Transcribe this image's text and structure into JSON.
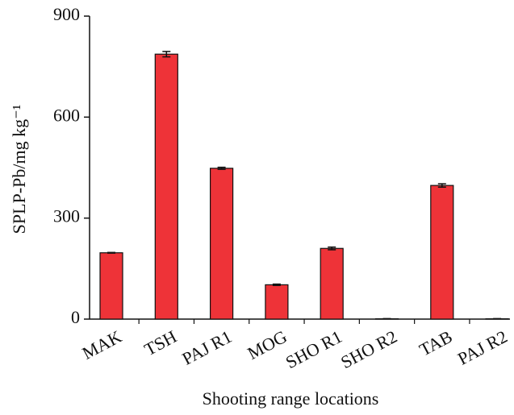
{
  "chart_data": {
    "type": "bar",
    "x_label": "Shooting range locations",
    "y_label": "SPLP-Pb/mg kg⁻¹",
    "categories": [
      "MAK",
      "TSH",
      "PAJ R1",
      "MOG",
      "SHO R1",
      "SHO R2",
      "TAB",
      "PAJ R2"
    ],
    "values": [
      197,
      787,
      448,
      102,
      210,
      1,
      397,
      1
    ],
    "errors": [
      1,
      8,
      3,
      2,
      4,
      0.5,
      5,
      0.5
    ],
    "color": "#ee3338",
    "ylim": [
      0,
      900
    ],
    "yticks": [
      0,
      300,
      600,
      900
    ],
    "grid": false
  }
}
